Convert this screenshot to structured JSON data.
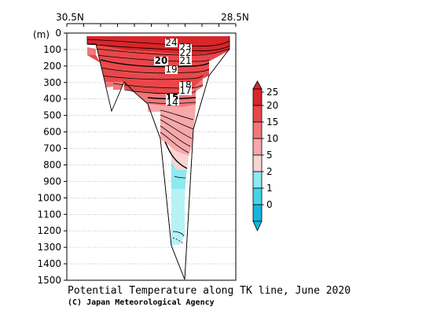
{
  "chart_data": {
    "type": "heatmap",
    "title": "Potential Temperature along TK line, June 2020",
    "credit": "(C) Japan Meteorological Agency",
    "x_labels": [
      "30.5N",
      "28.5N"
    ],
    "ylabel": "(m)",
    "y_ticks": [
      0,
      100,
      200,
      300,
      400,
      500,
      600,
      700,
      800,
      900,
      1000,
      1100,
      1200,
      1300,
      1400,
      1500
    ],
    "ylim": [
      0,
      1500
    ],
    "grid": true,
    "colorbar": {
      "levels": [
        "25",
        "20",
        "15",
        "10",
        "5",
        "2",
        "1",
        "0"
      ],
      "colors": [
        "#d8262a",
        "#e8474a",
        "#f0777a",
        "#f7a8aa",
        "#fbd3d3",
        "#8ee9f0",
        "#45d4e6",
        "#14b6e0"
      ]
    },
    "contour_labels": [
      {
        "value": "24",
        "depth": 50
      },
      {
        "value": "23",
        "depth": 90
      },
      {
        "value": "22",
        "depth": 115
      },
      {
        "value": "21",
        "depth": 165
      },
      {
        "value": "20",
        "depth": 165
      },
      {
        "value": "19",
        "depth": 220
      },
      {
        "value": "18",
        "depth": 315
      },
      {
        "value": "17",
        "depth": 345
      },
      {
        "value": "15",
        "depth": 395
      },
      {
        "value": "14",
        "depth": 420
      }
    ]
  }
}
